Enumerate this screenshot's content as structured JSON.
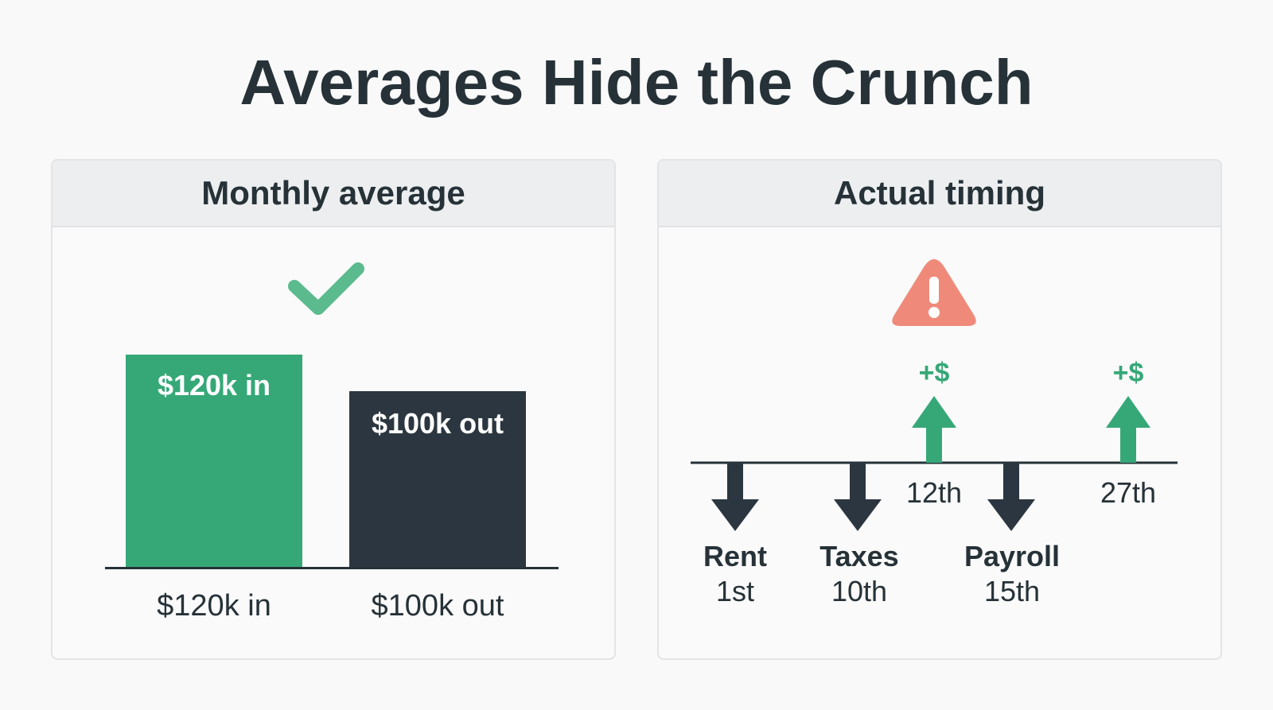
{
  "title": "Averages Hide the Crunch",
  "left_panel": {
    "header": "Monthly average",
    "colors": {
      "inflow": "#36a877",
      "outflow": "#2b3640",
      "check": "#5bbb8e"
    },
    "bars": [
      {
        "key": "in",
        "inner_label": "$120k in",
        "axis_label": "$120k in",
        "value": 120
      },
      {
        "key": "out",
        "inner_label": "$100k out",
        "axis_label": "$100k out",
        "value": 100
      }
    ],
    "icon": "checkmark-icon"
  },
  "right_panel": {
    "header": "Actual timing",
    "icon": "warning-triangle-icon",
    "colors": {
      "warning": "#ef8a7a",
      "inflow": "#36a877",
      "outflow": "#2b3640"
    },
    "outflows": [
      {
        "name": "Rent",
        "day": "1st"
      },
      {
        "name": "Taxes",
        "day": "10th"
      },
      {
        "name": "Payroll",
        "day": "15th"
      }
    ],
    "inflows": [
      {
        "label": "+$",
        "day": "12th"
      },
      {
        "label": "+$",
        "day": "27th"
      }
    ]
  }
}
